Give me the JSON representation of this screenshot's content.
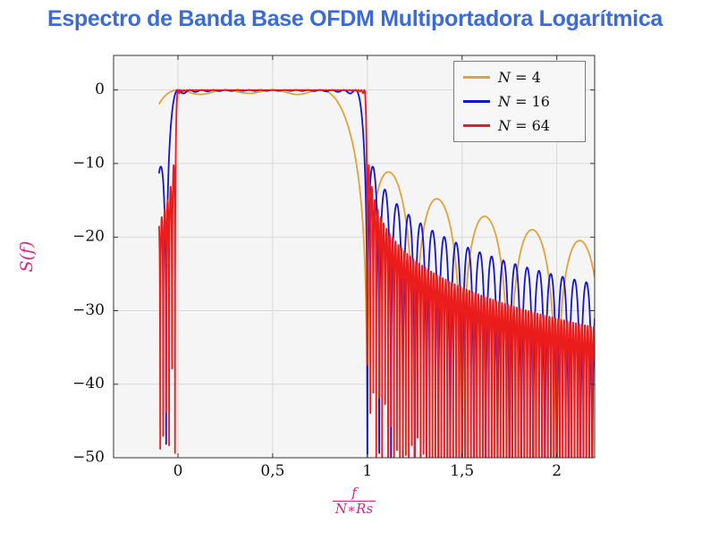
{
  "page": {
    "title": "Espectro de Banda Base OFDM Multiportadora Logarítmica"
  },
  "colors": {
    "title": "#3b6bd6",
    "axis_label": "#d61f8f",
    "plot_bg": "#f5f5f5",
    "grid": "#d9d9d9",
    "frame": "#333333",
    "tick_text": "#111111",
    "legend_bg": "#f7f7f7",
    "legend_border": "#7a7a7a",
    "orange": "#e0a33c",
    "blue": "#1414d4",
    "red": "#ea1c1c"
  },
  "chart_data": {
    "type": "line",
    "title": "Espectro de Banda Base OFDM Multiportadora Logarítmica",
    "ylabel": "S(f)",
    "xlabel": {
      "numerator": "f",
      "denominator": "N∗Rs"
    },
    "xlim": [
      -0.34,
      2.2
    ],
    "ylim": [
      -50,
      4.7
    ],
    "x_ticks": [
      {
        "value": 0,
        "label": "0"
      },
      {
        "value": 0.5,
        "label": "0,5"
      },
      {
        "value": 1,
        "label": "1"
      },
      {
        "value": 1.5,
        "label": "1,5"
      },
      {
        "value": 2,
        "label": "2"
      }
    ],
    "y_ticks": [
      {
        "value": 0,
        "label": "0"
      },
      {
        "value": -10,
        "label": "−10"
      },
      {
        "value": -20,
        "label": "−20"
      },
      {
        "value": -30,
        "label": "−30"
      },
      {
        "value": -40,
        "label": "−40"
      },
      {
        "value": -50,
        "label": "−50"
      }
    ],
    "grid": true,
    "legend_position": "top-right",
    "model": "S_N(x) = 10*log10( sum_{k=0..N-1} sinc^2(N*x - k) ), sinc(u)=sin(pi*u)/(pi*u), x = f/(N*Rs), flat band 0 dB from x=0 to x=(N-1)/N, sidelobe nulls every 1/N beyond band edge",
    "sample_domain": [
      -0.1,
      2.2
    ],
    "samples": 3600,
    "clip_floor_db": -80,
    "series": [
      {
        "label": "N = 4",
        "label_var": "N",
        "label_rest": "= 4",
        "N": 4,
        "color": "#e0a33c",
        "line_width": 1.8,
        "key_points": [
          [
            -0.1,
            -1.9
          ],
          [
            0,
            0
          ],
          [
            0.4,
            0
          ],
          [
            0.75,
            0
          ],
          [
            1.0,
            -36
          ],
          [
            1.12,
            -11.2
          ],
          [
            1.375,
            -14.8
          ],
          [
            1.625,
            -17.2
          ],
          [
            1.875,
            -19.0
          ],
          [
            2.125,
            -20.5
          ]
        ]
      },
      {
        "label": "N = 16",
        "label_var": "N",
        "label_rest": "= 16",
        "N": 16,
        "color": "#1414d4",
        "line_width": 1.8,
        "key_points": [
          [
            -0.1,
            -11.6
          ],
          [
            -0.0625,
            -45
          ],
          [
            0,
            0
          ],
          [
            0.9375,
            0
          ],
          [
            1.0,
            -30
          ],
          [
            1.03,
            -10.7
          ],
          [
            1.25,
            -16
          ],
          [
            1.5,
            -20.7
          ],
          [
            2.0,
            -25
          ]
        ]
      },
      {
        "label": "N = 64",
        "label_var": "N",
        "label_rest": "= 64",
        "N": 64,
        "color": "#ea1c1c",
        "line_width": 1.8,
        "key_points": [
          [
            -0.1,
            -18.9
          ],
          [
            0,
            0
          ],
          [
            0.984,
            0
          ],
          [
            1.02,
            -10
          ],
          [
            1.1,
            -18.4
          ],
          [
            1.3,
            -23.5
          ],
          [
            1.5,
            -26.8
          ],
          [
            1.7,
            -28.5
          ],
          [
            2.0,
            -30
          ]
        ]
      }
    ]
  }
}
